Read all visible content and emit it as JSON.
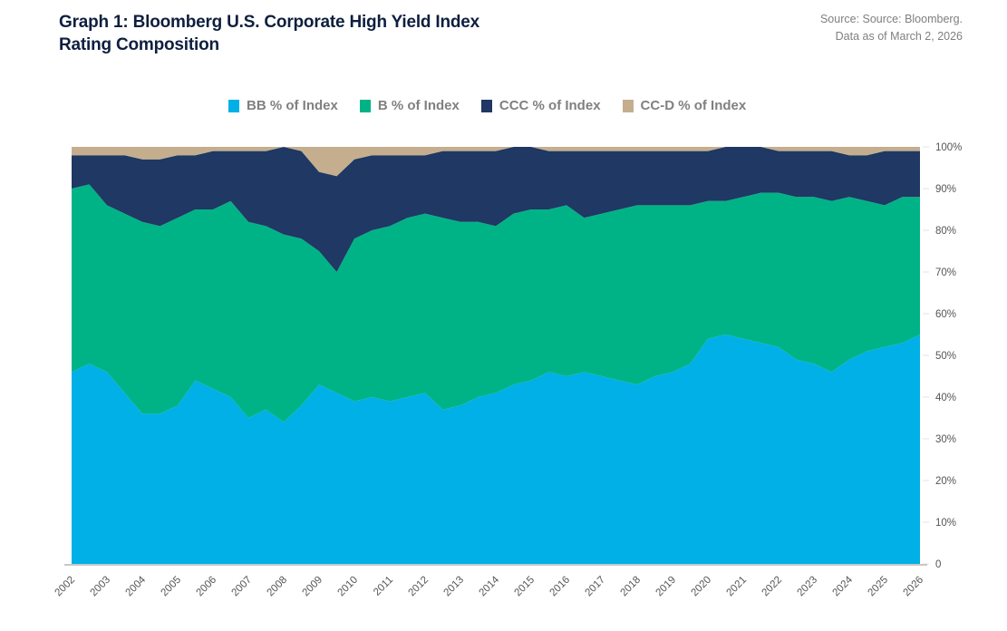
{
  "header": {
    "title_line1": "Graph 1: Bloomberg U.S. Corporate High Yield Index",
    "title_line2": "Rating Composition",
    "source_line1": "Source: Source: Bloomberg.",
    "source_line2": "Data as of March 2, 2026"
  },
  "chart_data": {
    "type": "area",
    "stacked": true,
    "title": "Graph 1: Bloomberg U.S. Corporate High Yield Index Rating Composition",
    "xlabel": "",
    "ylabel": "",
    "ylim": [
      0,
      100
    ],
    "xlim": [
      2002,
      2026
    ],
    "grid": false,
    "legend_position": "top",
    "y_ticks": [
      "0",
      "10%",
      "20%",
      "30%",
      "40%",
      "50%",
      "60%",
      "70%",
      "80%",
      "90%",
      "100%"
    ],
    "x_ticks": [
      "2002",
      "2003",
      "2004",
      "2005",
      "2006",
      "2007",
      "2008",
      "2009",
      "2010",
      "2011",
      "2012",
      "2013",
      "2014",
      "2015",
      "2016",
      "2017",
      "2018",
      "2019",
      "2020",
      "2021",
      "2022",
      "2023",
      "2024",
      "2025",
      "2026"
    ],
    "x": [
      2002,
      2002.5,
      2003,
      2003.5,
      2004,
      2004.5,
      2005,
      2005.5,
      2006,
      2006.5,
      2007,
      2007.5,
      2008,
      2008.5,
      2009,
      2009.5,
      2010,
      2010.5,
      2011,
      2011.5,
      2012,
      2012.5,
      2013,
      2013.5,
      2014,
      2014.5,
      2015,
      2015.5,
      2016,
      2016.5,
      2017,
      2017.5,
      2018,
      2018.5,
      2019,
      2019.5,
      2020,
      2020.5,
      2021,
      2021.5,
      2022,
      2022.5,
      2023,
      2023.5,
      2024,
      2024.5,
      2025,
      2025.5,
      2026
    ],
    "series": [
      {
        "name": "BB % of Index",
        "color": "#00b0e6",
        "values": [
          46,
          48,
          46,
          41,
          36,
          36,
          38,
          44,
          42,
          40,
          35,
          37,
          34,
          38,
          43,
          41,
          39,
          40,
          39,
          40,
          41,
          37,
          38,
          40,
          41,
          43,
          44,
          46,
          45,
          46,
          45,
          44,
          43,
          45,
          46,
          48,
          54,
          55,
          54,
          53,
          52,
          49,
          48,
          46,
          49,
          51,
          52,
          53,
          55
        ]
      },
      {
        "name": "B % of Index",
        "color": "#00b386",
        "values": [
          44,
          43,
          40,
          43,
          46,
          45,
          45,
          41,
          43,
          47,
          47,
          44,
          45,
          40,
          32,
          29,
          39,
          40,
          42,
          43,
          43,
          46,
          44,
          42,
          40,
          41,
          41,
          39,
          41,
          37,
          39,
          41,
          43,
          41,
          40,
          38,
          33,
          32,
          34,
          36,
          37,
          39,
          40,
          41,
          39,
          36,
          34,
          35,
          33
        ]
      },
      {
        "name": "CCC % of Index",
        "color": "#1f3864",
        "values": [
          8,
          7,
          12,
          14,
          15,
          16,
          15,
          13,
          14,
          12,
          17,
          18,
          21,
          21,
          19,
          23,
          19,
          18,
          17,
          15,
          14,
          16,
          17,
          17,
          18,
          16,
          15,
          14,
          13,
          16,
          15,
          14,
          13,
          13,
          13,
          13,
          12,
          13,
          12,
          11,
          10,
          11,
          11,
          12,
          10,
          11,
          13,
          11,
          11
        ]
      },
      {
        "name": "CC-D % of Index",
        "color": "#c4ae8e",
        "values": [
          2,
          2,
          2,
          2,
          3,
          3,
          2,
          2,
          1,
          1,
          1,
          1,
          0,
          1,
          6,
          7,
          3,
          2,
          2,
          2,
          2,
          1,
          1,
          1,
          1,
          0,
          0,
          1,
          1,
          1,
          1,
          1,
          1,
          1,
          1,
          1,
          1,
          0,
          0,
          0,
          1,
          1,
          1,
          1,
          2,
          2,
          1,
          1,
          1
        ]
      }
    ]
  },
  "legend": [
    {
      "label": "BB % of Index",
      "color": "#00b0e6"
    },
    {
      "label": "B % of Index",
      "color": "#00b386"
    },
    {
      "label": "CCC % of Index",
      "color": "#1f3864"
    },
    {
      "label": "CC-D % of Index",
      "color": "#c4ae8e"
    }
  ]
}
